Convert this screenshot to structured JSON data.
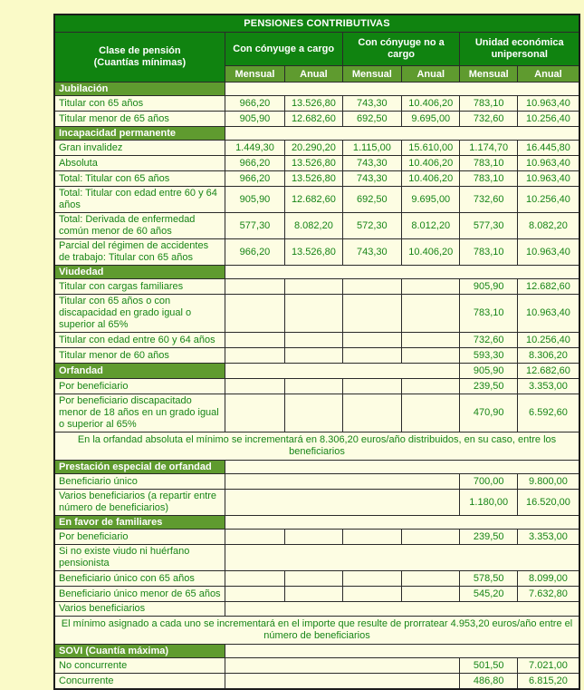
{
  "colors": {
    "page_bg": "#FAFAC8",
    "header_green": "#108310",
    "section_green": "#5F9B2F",
    "cell_bg": "#FDFDE3",
    "text_green": "#178517",
    "border": "#2A2A2A",
    "header_text": "#FFFFFF"
  },
  "table": {
    "title": "PENSIONES CONTRIBUTIVAS",
    "header": {
      "class_line1": "Clase de pensión",
      "class_line2": "(Cuantías mínimas)",
      "groups": [
        "Con cónyuge a cargo",
        "Con cónyuge no a cargo",
        "Unidad económica unipersonal"
      ],
      "sub": [
        "Mensual",
        "Anual",
        "Mensual",
        "Anual",
        "Mensual",
        "Anual"
      ]
    },
    "rows": [
      {
        "type": "section",
        "label": "Jubilación"
      },
      {
        "type": "data",
        "label": "Titular con 65 años",
        "cells": [
          "966,20",
          "13.526,80",
          "743,30",
          "10.406,20",
          "783,10",
          "10.963,40"
        ]
      },
      {
        "type": "data",
        "label": "Titular menor de 65 años",
        "cells": [
          "905,90",
          "12.682,60",
          "692,50",
          "9.695,00",
          "732,60",
          "10.256,40"
        ]
      },
      {
        "type": "section",
        "label": "Incapacidad permanente"
      },
      {
        "type": "data",
        "label": "Gran invalidez",
        "cells": [
          "1.449,30",
          "20.290,20",
          "1.115,00",
          "15.610,00",
          "1.174,70",
          "16.445,80"
        ]
      },
      {
        "type": "data",
        "label": "Absoluta",
        "cells": [
          "966,20",
          "13.526,80",
          "743,30",
          "10.406,20",
          "783,10",
          "10.963,40"
        ]
      },
      {
        "type": "data",
        "label": "Total: Titular con 65 años",
        "cells": [
          "966,20",
          "13.526,80",
          "743,30",
          "10.406,20",
          "783,10",
          "10.963,40"
        ]
      },
      {
        "type": "data",
        "label": "Total: Titular con edad entre 60 y 64 años",
        "cells": [
          "905,90",
          "12.682,60",
          "692,50",
          "9.695,00",
          "732,60",
          "10.256,40"
        ]
      },
      {
        "type": "data",
        "label": "Total: Derivada de enfermedad común menor de 60 años",
        "cells": [
          "577,30",
          "8.082,20",
          "572,30",
          "8.012,20",
          "577,30",
          "8.082,20"
        ]
      },
      {
        "type": "data",
        "label": "Parcial del régimen de accidentes de trabajo: Titular con 65 años",
        "cells": [
          "966,20",
          "13.526,80",
          "743,30",
          "10.406,20",
          "783,10",
          "10.963,40"
        ]
      },
      {
        "type": "section",
        "label": "Viudedad"
      },
      {
        "type": "data",
        "label": "Titular con cargas familiares",
        "cells": [
          "",
          "",
          "",
          "",
          "905,90",
          "12.682,60"
        ]
      },
      {
        "type": "data",
        "label": "Titular con 65 años o con discapacidad en grado igual o superior al 65%",
        "cells": [
          "",
          "",
          "",
          "",
          "783,10",
          "10.963,40"
        ]
      },
      {
        "type": "data",
        "label": "Titular con edad entre 60 y 64 años",
        "cells": [
          "",
          "",
          "",
          "",
          "732,60",
          "10.256,40"
        ]
      },
      {
        "type": "data",
        "label": "Titular menor de 60 años",
        "cells": [
          "",
          "",
          "",
          "",
          "593,30",
          "8.306,20"
        ]
      },
      {
        "type": "section_values",
        "label": "Orfandad",
        "values": [
          "905,90",
          "12.682,60"
        ]
      },
      {
        "type": "data",
        "label": "Por beneficiario",
        "cells": [
          "",
          "",
          "",
          "",
          "239,50",
          "3.353,00"
        ]
      },
      {
        "type": "data",
        "label": "Por beneficiario discapacitado menor de 18 años en un grado igual o superior al 65%",
        "cells": [
          "",
          "",
          "",
          "",
          "470,90",
          "6.592,60"
        ]
      },
      {
        "type": "note",
        "text": "En la orfandad absoluta el mínimo se incrementará en 8.306,20  euros/año distribuidos, en su caso, entre los beneficiarios"
      },
      {
        "type": "section",
        "label": "Prestación especial de orfandad"
      },
      {
        "type": "merged",
        "label": "Beneficiario único",
        "values": [
          "700,00",
          "9.800,00"
        ]
      },
      {
        "type": "merged",
        "label": "Varios beneficiarios (a repartir entre número de beneficiarios)",
        "values": [
          "1.180,00",
          "16.520,00"
        ]
      },
      {
        "type": "section",
        "label": "En favor de familiares"
      },
      {
        "type": "data",
        "label": "Por beneficiario",
        "cells": [
          "",
          "",
          "",
          "",
          "239,50",
          "3.353,00"
        ]
      },
      {
        "type": "label_only",
        "label": "Si no existe viudo ni huérfano pensionista"
      },
      {
        "type": "data",
        "label": "Beneficiario único con 65 años",
        "cells": [
          "",
          "",
          "",
          "",
          "578,50",
          "8.099,00"
        ]
      },
      {
        "type": "data",
        "label": "Beneficiario único menor de 65 años",
        "cells": [
          "",
          "",
          "",
          "",
          "545,20",
          "7.632,80"
        ]
      },
      {
        "type": "label_only",
        "label": "Varios beneficiarios"
      },
      {
        "type": "note",
        "text": "El mínimo asignado a cada uno se incrementará en el importe que resulte de prorratear 4.953,20 euros/año entre el número de beneficiarios"
      },
      {
        "type": "section",
        "label": "SOVI (Cuantía máxima)"
      },
      {
        "type": "merged",
        "label": "No concurrente",
        "values": [
          "501,50",
          "7.021,00"
        ]
      },
      {
        "type": "merged",
        "label": "Concurrente",
        "values": [
          "486,80",
          "6.815,20"
        ]
      }
    ]
  }
}
